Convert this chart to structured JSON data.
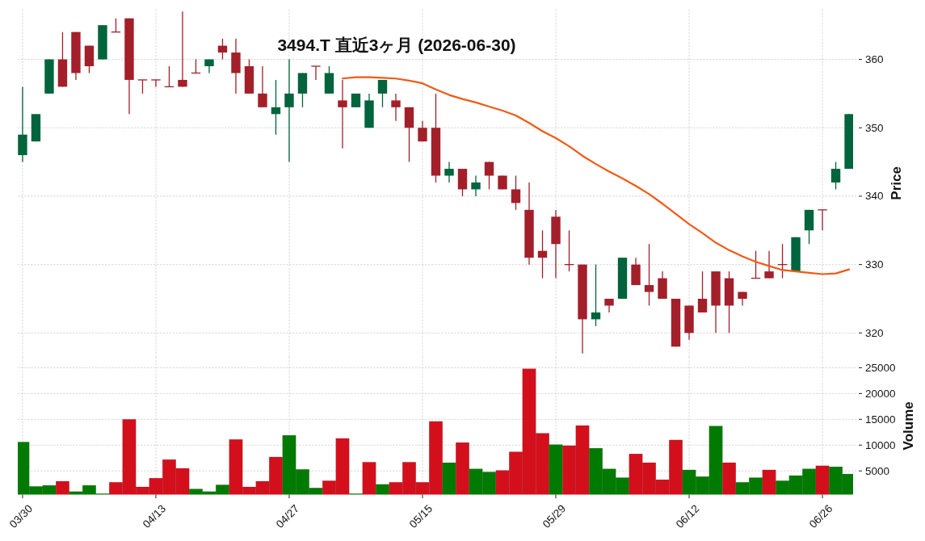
{
  "chart_data": [
    {
      "type": "candlestick",
      "title": "3494.T 直近3ヶ月 (2026-06-30)",
      "ylabel": "Price",
      "ylim": [
        316.5,
        367.3
      ],
      "yticks": [
        320,
        330,
        340,
        350,
        360
      ],
      "grid": true,
      "tick_labels": "y",
      "categories": [
        null,
        null,
        null,
        null,
        null,
        null,
        null,
        null,
        null,
        null,
        null,
        null,
        null,
        null,
        null,
        null,
        null,
        null,
        null,
        null,
        null,
        null,
        null,
        null,
        null,
        null,
        null,
        null,
        null,
        null,
        null,
        null,
        null,
        null,
        null,
        null,
        null,
        null,
        null,
        null,
        null,
        null,
        null,
        null,
        null,
        null,
        null,
        null,
        null,
        null,
        null,
        null,
        null,
        null,
        null,
        null,
        null,
        null,
        null,
        null,
        null,
        null,
        null
      ],
      "ohlc": [
        [
          346,
          356,
          345,
          349
        ],
        [
          348,
          352,
          348,
          352
        ],
        [
          355,
          360,
          355,
          360
        ],
        [
          360,
          364,
          356,
          356
        ],
        [
          364,
          364,
          357,
          358
        ],
        [
          362,
          362,
          358,
          359
        ],
        [
          360,
          365,
          360,
          365
        ],
        [
          364,
          366,
          364,
          364
        ],
        [
          366,
          366,
          352,
          357
        ],
        [
          357,
          357,
          355,
          357
        ],
        [
          357,
          357,
          356,
          357
        ],
        [
          356,
          359,
          356,
          356
        ],
        [
          357,
          367,
          356,
          356
        ],
        [
          358,
          360,
          358,
          358
        ],
        [
          359,
          360,
          358,
          360
        ],
        [
          362,
          363,
          360,
          361
        ],
        [
          361,
          363,
          355,
          358
        ],
        [
          359,
          360,
          355,
          355
        ],
        [
          355,
          359,
          353,
          353
        ],
        [
          352,
          357,
          349,
          353
        ],
        [
          353,
          360,
          345,
          355
        ],
        [
          355,
          358,
          353,
          358
        ],
        [
          359,
          359,
          357,
          359
        ],
        [
          355,
          359,
          355,
          358
        ],
        [
          354,
          357,
          347,
          353
        ],
        [
          353,
          355,
          353,
          355
        ],
        [
          350,
          355,
          350,
          354
        ],
        [
          355,
          357,
          353,
          357
        ],
        [
          354,
          355,
          351,
          353
        ],
        [
          353,
          353,
          345,
          350
        ],
        [
          350,
          351,
          348,
          348
        ],
        [
          350,
          355,
          342,
          343
        ],
        [
          343,
          345,
          342,
          344
        ],
        [
          344,
          344,
          340,
          341
        ],
        [
          341,
          343,
          340,
          342
        ],
        [
          345,
          345,
          341,
          343
        ],
        [
          343,
          343,
          341,
          341
        ],
        [
          341,
          343,
          338,
          339
        ],
        [
          338,
          342,
          330,
          331
        ],
        [
          332,
          335,
          328,
          331
        ],
        [
          337,
          338,
          328,
          333
        ],
        [
          330,
          335,
          329,
          330
        ],
        [
          330,
          330,
          317,
          322
        ],
        [
          322,
          330,
          321,
          323
        ],
        [
          325,
          325,
          323,
          324
        ],
        [
          325,
          331,
          325,
          331
        ],
        [
          330,
          331,
          327,
          327
        ],
        [
          327,
          333,
          324,
          326
        ],
        [
          328,
          329,
          325,
          325
        ],
        [
          325,
          325,
          318,
          318
        ],
        [
          324,
          324,
          319,
          320
        ],
        [
          325,
          329,
          323,
          323
        ],
        [
          329,
          329,
          320,
          324
        ],
        [
          328,
          329,
          320,
          324
        ],
        [
          326,
          326,
          324,
          325
        ],
        [
          328,
          332,
          328,
          328
        ],
        [
          329,
          332,
          328,
          328
        ],
        [
          330,
          333,
          328,
          330
        ],
        [
          329,
          334,
          329,
          334
        ],
        [
          335,
          338,
          333,
          338
        ],
        [
          338,
          338,
          335,
          338
        ],
        [
          342,
          345,
          341,
          344
        ],
        [
          344,
          352,
          344,
          352
        ]
      ],
      "colors": [
        "#00643c",
        "#00643c",
        "#00643c",
        "#a31f2a",
        "#a31f2a",
        "#a31f2a",
        "#00643c",
        "#a31f2a",
        "#a31f2a",
        "#a31f2a",
        "#a31f2a",
        "#a31f2a",
        "#a31f2a",
        "#a31f2a",
        "#00643c",
        "#a31f2a",
        "#a31f2a",
        "#a31f2a",
        "#a31f2a",
        "#00643c",
        "#00643c",
        "#00643c",
        "#a31f2a",
        "#00643c",
        "#a31f2a",
        "#00643c",
        "#00643c",
        "#00643c",
        "#a31f2a",
        "#a31f2a",
        "#a31f2a",
        "#a31f2a",
        "#00643c",
        "#a31f2a",
        "#00643c",
        "#a31f2a",
        "#a31f2a",
        "#a31f2a",
        "#a31f2a",
        "#a31f2a",
        "#a31f2a",
        "#a31f2a",
        "#a31f2a",
        "#00643c",
        "#a31f2a",
        "#00643c",
        "#a31f2a",
        "#a31f2a",
        "#a31f2a",
        "#a31f2a",
        "#a31f2a",
        "#a31f2a",
        "#a31f2a",
        "#a31f2a",
        "#a31f2a",
        "#a31f2a",
        "#a31f2a",
        "#a31f2a",
        "#00643c",
        "#00643c",
        "#a31f2a",
        "#00643c",
        "#00643c"
      ],
      "series": [
        {
          "type": "line",
          "color": "#f05a14",
          "values": [
            null,
            null,
            null,
            null,
            null,
            null,
            null,
            null,
            null,
            null,
            null,
            null,
            null,
            null,
            null,
            null,
            null,
            null,
            null,
            null,
            null,
            null,
            null,
            null,
            357.2,
            357.4,
            357.4,
            357.3,
            357.2,
            356.9,
            356.5,
            355.6,
            354.8,
            354.2,
            353.7,
            353.1,
            352.5,
            351.8,
            350.7,
            349.5,
            348.5,
            347.3,
            345.9,
            344.7,
            343.6,
            342.6,
            341.5,
            340.3,
            338.9,
            337.4,
            335.9,
            334.6,
            333.2,
            332.1,
            331.2,
            330.4,
            329.8,
            329.2,
            329.0,
            328.8,
            328.6,
            328.7,
            329.3
          ]
        }
      ]
    },
    {
      "type": "bar",
      "ylabel": "Volume",
      "ylim": [
        400,
        27100
      ],
      "yticks": [
        5000,
        10000,
        15000,
        20000,
        25000
      ],
      "grid": true,
      "categories": [
        "03/30",
        null,
        null,
        null,
        null,
        null,
        null,
        null,
        null,
        null,
        "04/13",
        null,
        null,
        null,
        null,
        null,
        null,
        null,
        null,
        null,
        "04/27",
        null,
        null,
        null,
        null,
        null,
        null,
        null,
        null,
        null,
        "05/15",
        null,
        null,
        null,
        null,
        null,
        null,
        null,
        null,
        null,
        "05/29",
        null,
        null,
        null,
        null,
        null,
        null,
        null,
        null,
        null,
        "06/12",
        null,
        null,
        null,
        null,
        null,
        null,
        null,
        null,
        null,
        "06/26",
        null,
        null
      ],
      "values": [
        10600,
        2000,
        2200,
        3000,
        1000,
        2200,
        600,
        2800,
        15000,
        1900,
        3600,
        7200,
        5500,
        1500,
        1000,
        2300,
        11100,
        1900,
        3000,
        7700,
        11900,
        5300,
        1700,
        3100,
        11300,
        600,
        6700,
        2400,
        2800,
        6700,
        2800,
        14600,
        6600,
        10500,
        5400,
        4800,
        5100,
        8700,
        24800,
        12300,
        10100,
        9900,
        13800,
        9400,
        5400,
        3700,
        8300,
        6600,
        3300,
        11000,
        5200,
        3900,
        13700,
        6600,
        2800,
        3700,
        5200,
        3100,
        4100,
        5400,
        6000,
        5800,
        4400
      ],
      "colors": [
        "#007a00",
        "#007a00",
        "#007a00",
        "#d40f1c",
        "#007a00",
        "#007a00",
        "#007a00",
        "#d40f1c",
        "#d40f1c",
        "#d40f1c",
        "#d40f1c",
        "#d40f1c",
        "#d40f1c",
        "#007a00",
        "#007a00",
        "#007a00",
        "#d40f1c",
        "#d40f1c",
        "#d40f1c",
        "#d40f1c",
        "#007a00",
        "#007a00",
        "#007a00",
        "#d40f1c",
        "#d40f1c",
        "#007a00",
        "#d40f1c",
        "#007a00",
        "#d40f1c",
        "#d40f1c",
        "#d40f1c",
        "#d40f1c",
        "#007a00",
        "#d40f1c",
        "#007a00",
        "#007a00",
        "#d40f1c",
        "#d40f1c",
        "#d40f1c",
        "#d40f1c",
        "#007a00",
        "#d40f1c",
        "#d40f1c",
        "#007a00",
        "#007a00",
        "#007a00",
        "#d40f1c",
        "#d40f1c",
        "#d40f1c",
        "#d40f1c",
        "#007a00",
        "#007a00",
        "#007a00",
        "#d40f1c",
        "#007a00",
        "#007a00",
        "#d40f1c",
        "#007a00",
        "#007a00",
        "#007a00",
        "#d40f1c",
        "#007a00",
        "#007a00"
      ]
    }
  ]
}
